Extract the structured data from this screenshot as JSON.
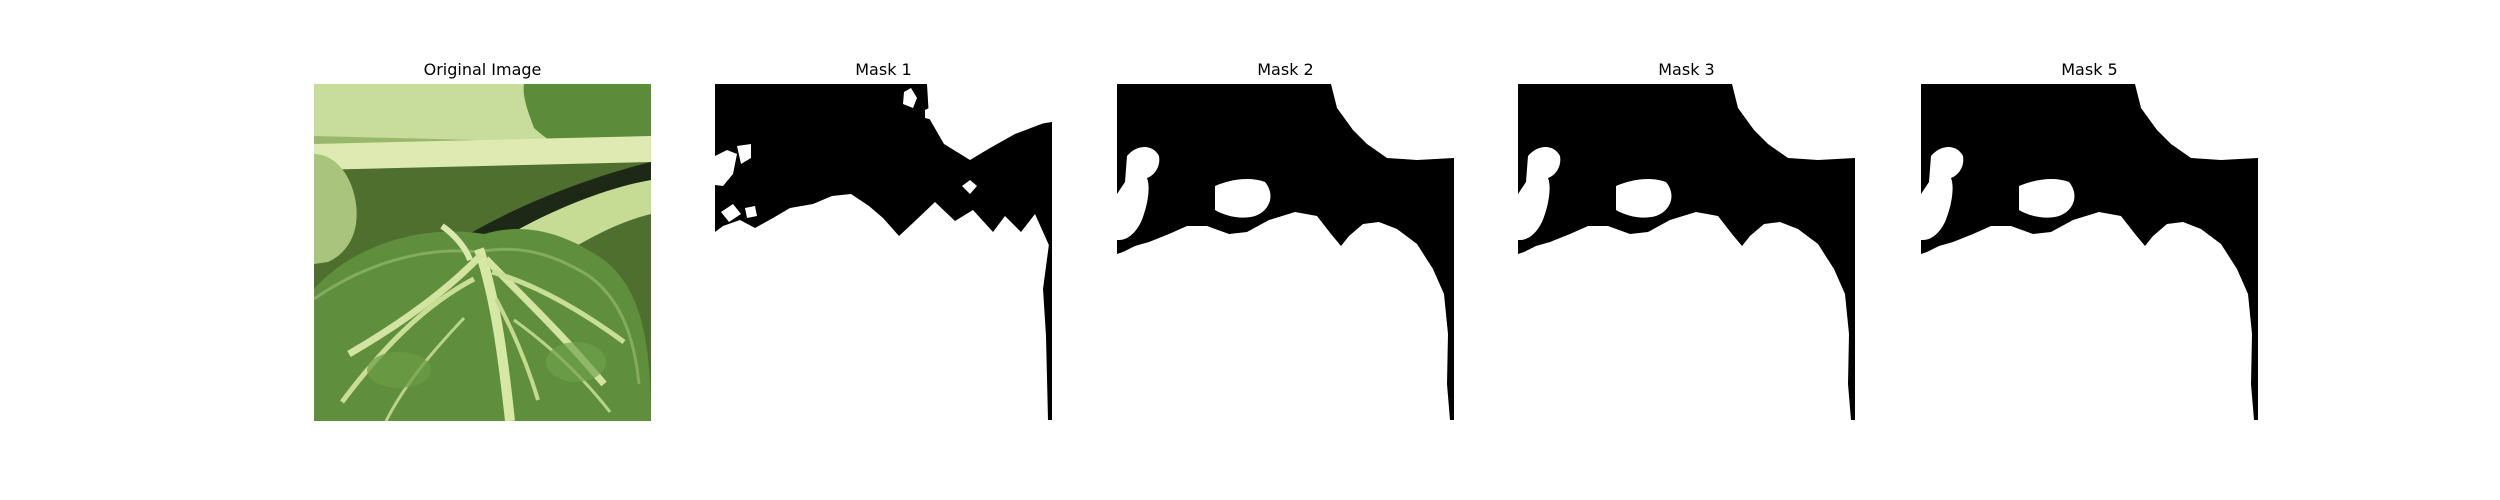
{
  "panels": [
    {
      "title": "Original Image",
      "kind": "photo"
    },
    {
      "title": "Mask 1",
      "kind": "mask"
    },
    {
      "title": "Mask 2",
      "kind": "mask"
    },
    {
      "title": "Mask 3",
      "kind": "mask"
    },
    {
      "title": "Mask 5",
      "kind": "mask"
    }
  ],
  "colors": {
    "background": "#ffffff",
    "mask_foreground": "#ffffff",
    "mask_background": "#000000",
    "leaf_dark": "#4d7a34",
    "leaf_mid": "#6f9a4b",
    "leaf_light": "#b9d48a",
    "stem": "#d8e8a6",
    "shadow": "#1d2817"
  }
}
